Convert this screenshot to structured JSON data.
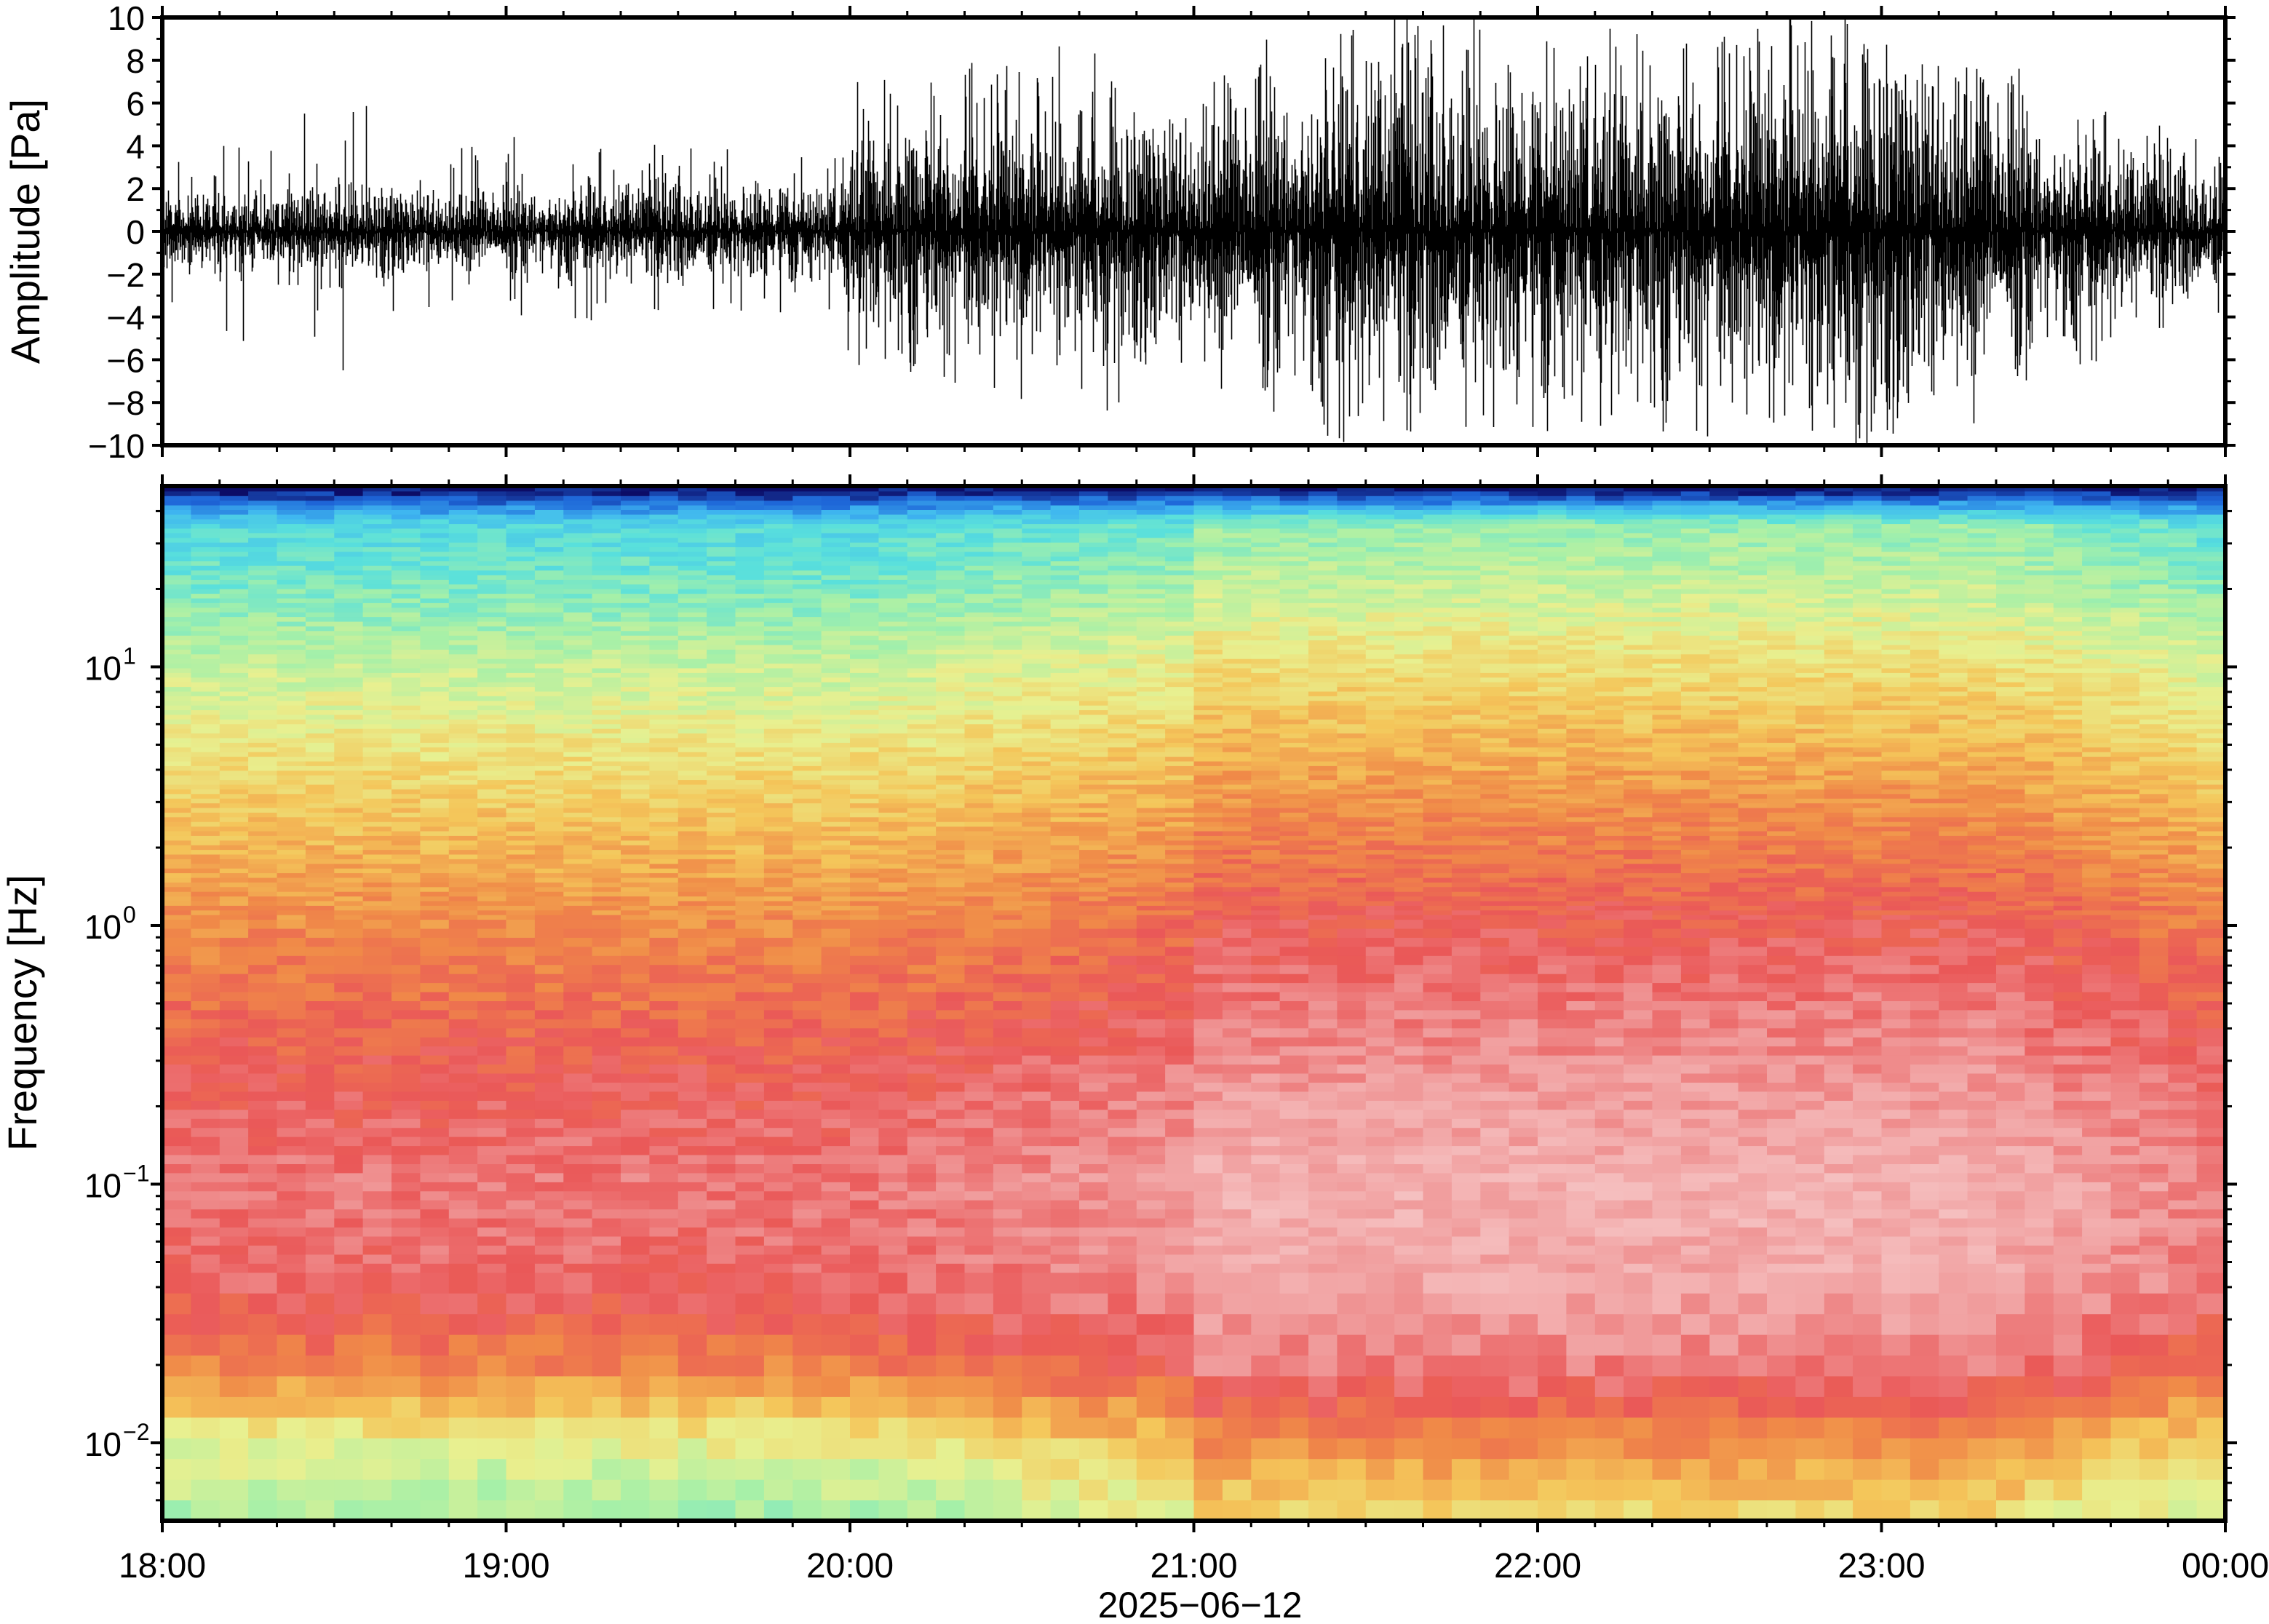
{
  "chart_data": [
    {
      "type": "line",
      "panel": "waveform",
      "ylabel": "Amplitude [Pa]",
      "ylim": [
        -10,
        10
      ],
      "yticks": [
        10,
        8,
        6,
        4,
        2,
        0,
        -2,
        -4,
        -6,
        -8,
        -10
      ],
      "ytick_labels": [
        "10",
        "8",
        "6",
        "4",
        "2",
        "0",
        "−2",
        "−4",
        "−6",
        "−8",
        "−10"
      ],
      "grid": false,
      "series_color": "#000000",
      "envelope": {
        "time_hours": [
          18.0,
          18.5,
          19.0,
          19.5,
          19.95,
          20.02,
          20.5,
          21.0,
          21.4,
          21.6,
          22.0,
          22.5,
          22.85,
          23.2,
          23.5,
          23.8,
          24.0
        ],
        "typical_amplitude": [
          1.4,
          1.6,
          1.5,
          1.8,
          1.6,
          3.6,
          4.5,
          4.2,
          5.8,
          6.4,
          5.4,
          5.6,
          7.4,
          6.0,
          3.8,
          2.6,
          2.2
        ],
        "peak_amplitude": [
          4,
          6.8,
          4.5,
          4,
          4,
          7,
          9,
          8,
          10,
          10,
          9.5,
          9.5,
          10,
          9,
          7,
          5,
          4
        ]
      }
    },
    {
      "type": "heatmap",
      "panel": "spectrogram",
      "ylabel": "Frequency [Hz]",
      "yscale": "log",
      "ylim": [
        0.005,
        50
      ],
      "yticks": [
        0.01,
        0.1,
        1,
        10
      ],
      "ytick_labels": [
        {
          "base": "10",
          "exp": "−2"
        },
        {
          "base": "10",
          "exp": "−1"
        },
        {
          "base": "10",
          "exp": "0"
        },
        {
          "base": "10",
          "exp": "1"
        }
      ],
      "colormap": [
        "#0c0c66",
        "#1e66d8",
        "#3fb6f0",
        "#59e0dc",
        "#a6f0a8",
        "#e8f090",
        "#f4c65a",
        "#f08a48",
        "#ea5858",
        "#f09a9a",
        "#f6c4c4"
      ],
      "relative_level_by_frequency": {
        "log10_frequency": [
          -2.3,
          -2.0,
          -1.7,
          -1.4,
          -1.0,
          -0.6,
          0.0,
          0.5,
          1.0,
          1.3,
          1.55,
          1.69
        ],
        "quiet_period_18_to_20": [
          0.4,
          0.5,
          0.72,
          0.82,
          0.85,
          0.8,
          0.7,
          0.58,
          0.45,
          0.35,
          0.28,
          0.0
        ],
        "active_period_21_to_23": [
          0.55,
          0.7,
          0.86,
          0.93,
          0.95,
          0.9,
          0.8,
          0.68,
          0.55,
          0.45,
          0.38,
          0.0
        ]
      }
    }
  ],
  "xaxis": {
    "label": "2025−06−12",
    "xlim_hours": [
      18,
      24
    ],
    "ticks": [
      "18:00",
      "19:00",
      "20:00",
      "21:00",
      "22:00",
      "23:00",
      "00:00"
    ]
  }
}
